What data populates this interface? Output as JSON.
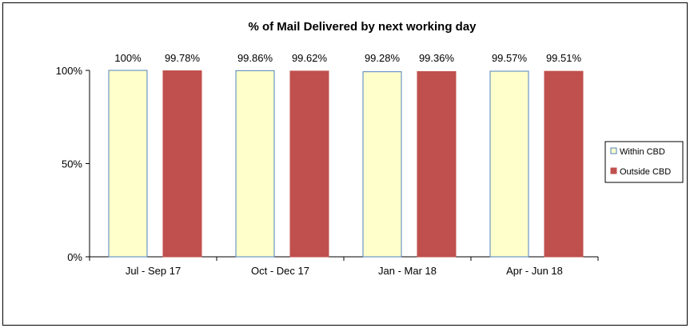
{
  "chart_data": {
    "type": "bar",
    "title": "% of Mail Delivered by next working day",
    "categories": [
      "Jul - Sep 17",
      "Oct - Dec 17",
      "Jan - Mar 18",
      "Apr - Jun 18"
    ],
    "series": [
      {
        "name": "Within CBD",
        "values": [
          100,
          99.86,
          99.28,
          99.57
        ],
        "labels": [
          "100%",
          "99.86%",
          "99.28%",
          "99.57%"
        ],
        "color": "#FFFFCC",
        "stroke": "#4F81BD"
      },
      {
        "name": "Outside CBD",
        "values": [
          99.78,
          99.62,
          99.36,
          99.51
        ],
        "labels": [
          "99.78%",
          "99.62%",
          "99.36%",
          "99.51%"
        ],
        "color": "#C0504D",
        "stroke": "#C0504D"
      }
    ],
    "ylim": [
      0,
      100
    ],
    "yticks": [
      0,
      50,
      100
    ],
    "ytick_labels": [
      "0%",
      "50%",
      "100%"
    ],
    "xlabel": "",
    "ylabel": "",
    "grid": false,
    "legend_position": "right"
  }
}
